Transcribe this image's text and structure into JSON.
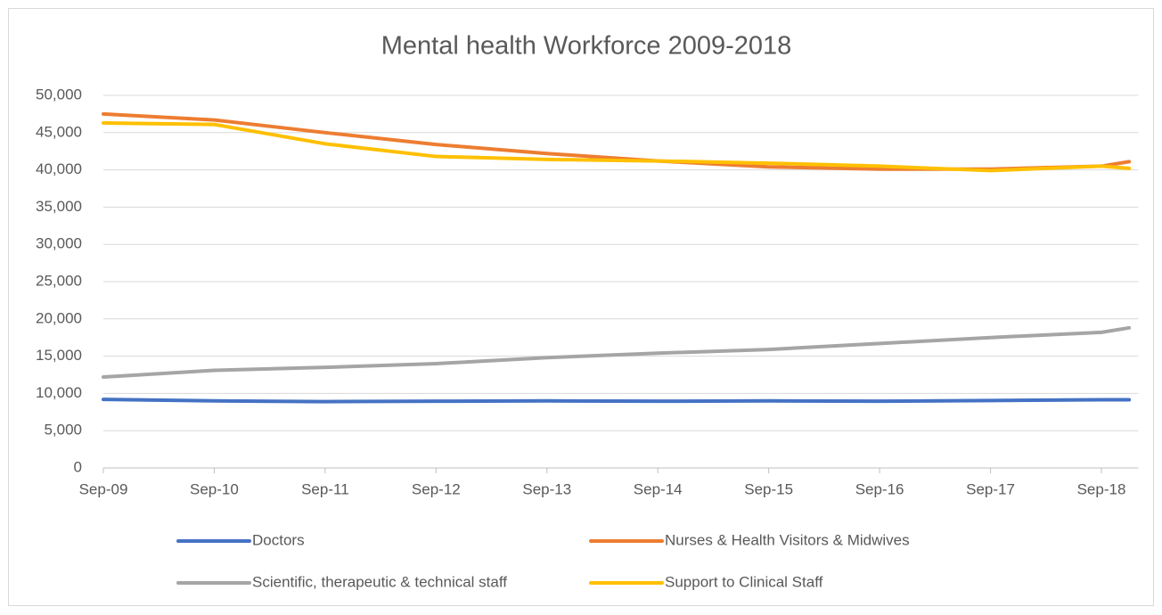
{
  "chart_data": {
    "type": "line",
    "title": "Mental health Workforce 2009-2018",
    "x": [
      0,
      12,
      24,
      36,
      48,
      60,
      72,
      84,
      96,
      108,
      111
    ],
    "xlim": [
      0,
      112
    ],
    "xticks": [
      {
        "value": 0,
        "label": "Sep-09"
      },
      {
        "value": 12,
        "label": "Sep-10"
      },
      {
        "value": 24,
        "label": "Sep-11"
      },
      {
        "value": 36,
        "label": "Sep-12"
      },
      {
        "value": 48,
        "label": "Sep-13"
      },
      {
        "value": 60,
        "label": "Sep-14"
      },
      {
        "value": 72,
        "label": "Sep-15"
      },
      {
        "value": 84,
        "label": "Sep-16"
      },
      {
        "value": 96,
        "label": "Sep-17"
      },
      {
        "value": 108,
        "label": "Sep-18"
      }
    ],
    "ylim": [
      0,
      50000
    ],
    "yticks": [
      0,
      {
        "value": 5000,
        "label": "5,000"
      },
      {
        "value": 10000,
        "label": "10,000"
      },
      {
        "value": 15000,
        "label": "15,000"
      },
      {
        "value": 20000,
        "label": "20,000"
      },
      {
        "value": 25000,
        "label": "25,000"
      },
      {
        "value": 30000,
        "label": "30,000"
      },
      {
        "value": 35000,
        "label": "35,000"
      },
      {
        "value": 40000,
        "label": "40,000"
      },
      {
        "value": 45000,
        "label": "45,000"
      },
      {
        "value": 50000,
        "label": "50,000"
      }
    ],
    "grid": true,
    "legend": "bottom",
    "series": [
      {
        "name": "Doctors",
        "color": "#4472c4",
        "values": [
          9200,
          9000,
          8900,
          8950,
          9000,
          8950,
          9000,
          8950,
          9050,
          9150,
          9150
        ]
      },
      {
        "name": "Nurses & Health Visitors & Midwives",
        "color": "#ed7d31",
        "values": [
          47500,
          46700,
          45000,
          43400,
          42200,
          41200,
          40400,
          40100,
          40100,
          40500,
          41100
        ]
      },
      {
        "name": "Scientific, therapeutic & technical staff",
        "color": "#a5a5a5",
        "values": [
          12200,
          13100,
          13500,
          14000,
          14800,
          15400,
          15900,
          16700,
          17500,
          18200,
          18800
        ]
      },
      {
        "name": "Support to Clinical Staff",
        "color": "#ffc000",
        "values": [
          46300,
          46100,
          43500,
          41800,
          41400,
          41200,
          40900,
          40500,
          39900,
          40500,
          40200
        ]
      }
    ]
  }
}
